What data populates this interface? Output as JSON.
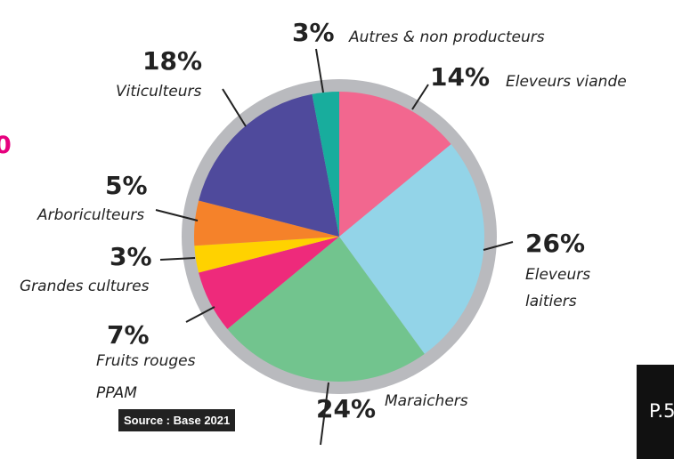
{
  "chart_data": {
    "type": "pie",
    "categories": [
      "Eleveurs viande",
      "Eleveurs laitiers",
      "Maraichers",
      "Fruits rouges PPAM",
      "Grandes cultures",
      "Arboriculteurs",
      "Viticulteurs",
      "Autres & non producteurs"
    ],
    "values": [
      14,
      26,
      24,
      7,
      3,
      5,
      18,
      3
    ],
    "value_labels": [
      "14%",
      "26%",
      "24%",
      "7%",
      "3%",
      "5%",
      "18%",
      "3%"
    ],
    "colors": [
      "#f2678f",
      "#93d4e8",
      "#72c48e",
      "#ee2a7b",
      "#ffd200",
      "#f5822a",
      "#4f4a9c",
      "#18ad9d"
    ],
    "ring_color": "#b9babe"
  },
  "source": "Source : Base 2021",
  "page_marker": "P.5",
  "side_text": "0"
}
